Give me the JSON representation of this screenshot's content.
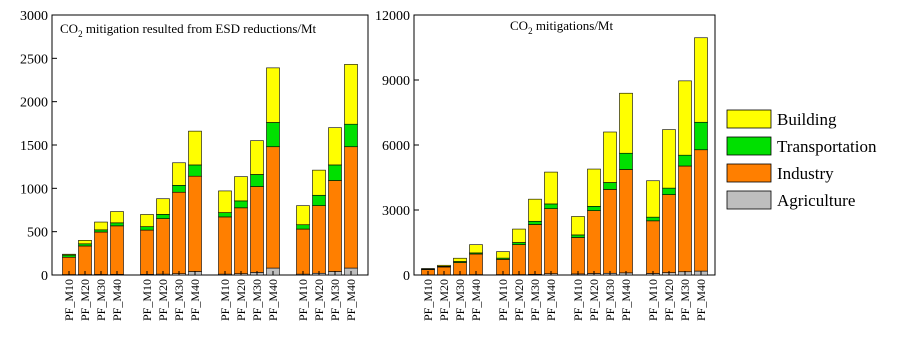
{
  "legend": {
    "placement": "right",
    "entries": [
      {
        "name": "Building",
        "color": "#FFFF00"
      },
      {
        "name": "Transportation",
        "color": "#00E000"
      },
      {
        "name": "Industry",
        "color": "#FF7F00"
      },
      {
        "name": "Agriculture",
        "color": "#BEBEBE"
      }
    ]
  },
  "chart_data": [
    {
      "type": "bar",
      "stacked": true,
      "title": "CO2 mitigation resulted from ESD reductions/Mt",
      "title_main": "CO",
      "title_sub": "2",
      "title_rest": " mitigation resulted from ESD reductions/Mt",
      "xlabel": "",
      "ylabel": "",
      "ylim": [
        0,
        3000
      ],
      "yticks": [
        0,
        500,
        1000,
        1500,
        2000,
        2500,
        3000
      ],
      "categories": [
        "PF_M10",
        "PF_M20",
        "PF_M30",
        "PF_M40",
        "PF_M10",
        "PF_M20",
        "PF_M30",
        "PF_M40",
        "PF_M10",
        "PF_M20",
        "PF_M30",
        "PF_M40",
        "PF_M10",
        "PF_M20",
        "PF_M30",
        "PF_M40"
      ],
      "groups": 4,
      "series": [
        {
          "name": "Agriculture",
          "values": [
            5,
            5,
            6,
            7,
            8,
            10,
            15,
            40,
            10,
            15,
            30,
            80,
            10,
            20,
            40,
            80
          ]
        },
        {
          "name": "Industry",
          "values": [
            200,
            330,
            490,
            560,
            510,
            640,
            940,
            1100,
            660,
            760,
            990,
            1400,
            520,
            780,
            1050,
            1400
          ]
        },
        {
          "name": "Transportation",
          "values": [
            25,
            25,
            25,
            35,
            40,
            50,
            80,
            130,
            50,
            80,
            140,
            280,
            50,
            120,
            180,
            260
          ]
        },
        {
          "name": "Building",
          "values": [
            10,
            40,
            90,
            130,
            140,
            180,
            260,
            390,
            250,
            280,
            390,
            630,
            220,
            290,
            430,
            690
          ]
        }
      ]
    },
    {
      "type": "bar",
      "stacked": true,
      "title": "CO2 mitigations/Mt",
      "title_main": "CO",
      "title_sub": "2",
      "title_rest": " mitigations/Mt",
      "xlabel": "",
      "ylabel": "",
      "ylim": [
        0,
        12000
      ],
      "yticks": [
        0,
        3000,
        6000,
        9000,
        12000
      ],
      "categories": [
        "PF_M10",
        "PF_M20",
        "PF_M30",
        "PF_M40",
        "PF_M10",
        "PF_M20",
        "PF_M30",
        "PF_M40",
        "PF_M10",
        "PF_M20",
        "PF_M30",
        "PF_M40",
        "PF_M10",
        "PF_M20",
        "PF_M30",
        "PF_M40"
      ],
      "groups": 4,
      "series": [
        {
          "name": "Agriculture",
          "values": [
            10,
            10,
            15,
            20,
            20,
            20,
            30,
            60,
            50,
            70,
            80,
            100,
            70,
            110,
            150,
            180
          ]
        },
        {
          "name": "Industry",
          "values": [
            240,
            360,
            560,
            950,
            700,
            1380,
            2300,
            3000,
            1680,
            2900,
            3870,
            4770,
            2430,
            3600,
            4880,
            5600
          ]
        },
        {
          "name": "Transportation",
          "values": [
            20,
            30,
            50,
            50,
            60,
            100,
            150,
            220,
            120,
            200,
            320,
            750,
            170,
            300,
            500,
            1270
          ]
        },
        {
          "name": "Building",
          "values": [
            30,
            50,
            150,
            380,
            300,
            620,
            1020,
            1470,
            850,
            1720,
            2330,
            2770,
            1680,
            2700,
            3430,
            3900
          ]
        }
      ]
    }
  ]
}
